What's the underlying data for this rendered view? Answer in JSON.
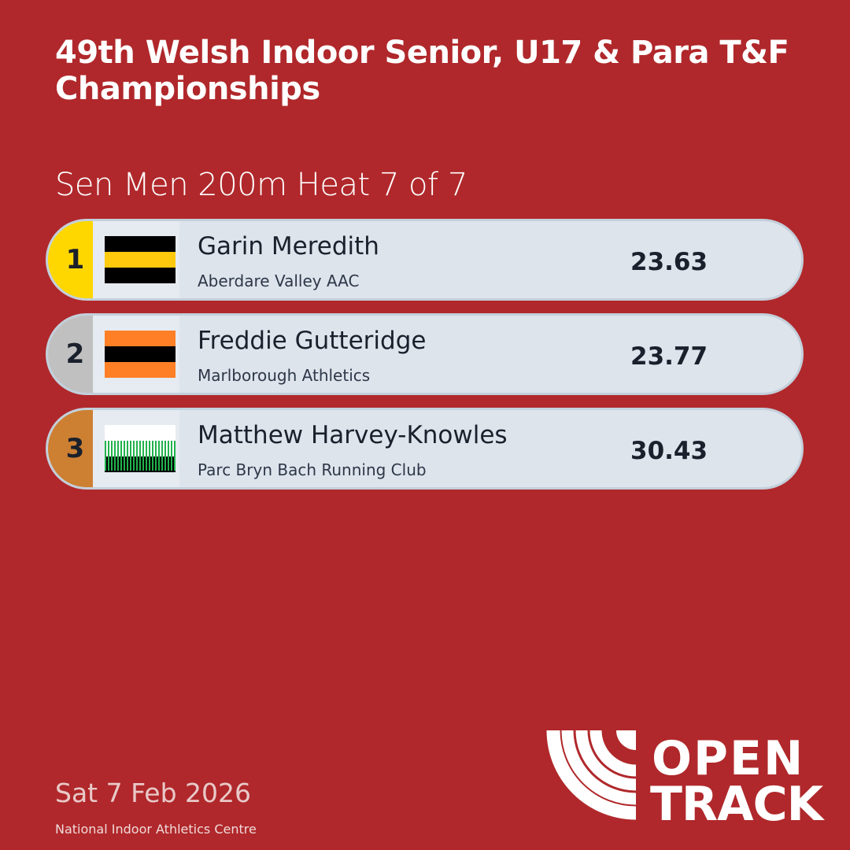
{
  "header": {
    "title": "49th Welsh Indoor Senior, U17 & Para T&F Championships",
    "event": "Sen Men 200m Heat 7 of 7"
  },
  "results": [
    {
      "rank": "1",
      "name": "Garin Meredith",
      "club": "Aberdare Valley AAC",
      "time": "23.63",
      "rank_color": "#ffd700",
      "flag": [
        "#000000",
        "#ffc90e",
        "#000000"
      ]
    },
    {
      "rank": "2",
      "name": "Freddie Gutteridge",
      "club": "Marlborough Athletics",
      "time": "23.77",
      "rank_color": "#c0c0c0",
      "flag": [
        "#ff7f27",
        "#000000",
        "#ff7f27"
      ]
    },
    {
      "rank": "3",
      "name": "Matthew Harvey-Knowles",
      "club": "Parc Bryn Bach Running Club",
      "time": "30.43",
      "rank_color": "#cd7f32",
      "flag": [
        "#ffffff",
        "#22b14c",
        "#000000"
      ]
    }
  ],
  "footer": {
    "date": "Sat 7 Feb 2026",
    "venue": "National Indoor Athletics Centre",
    "logo_text": "OPEN TRACK"
  },
  "colors": {
    "background": "#b0282b",
    "row": "#dde4ec"
  }
}
